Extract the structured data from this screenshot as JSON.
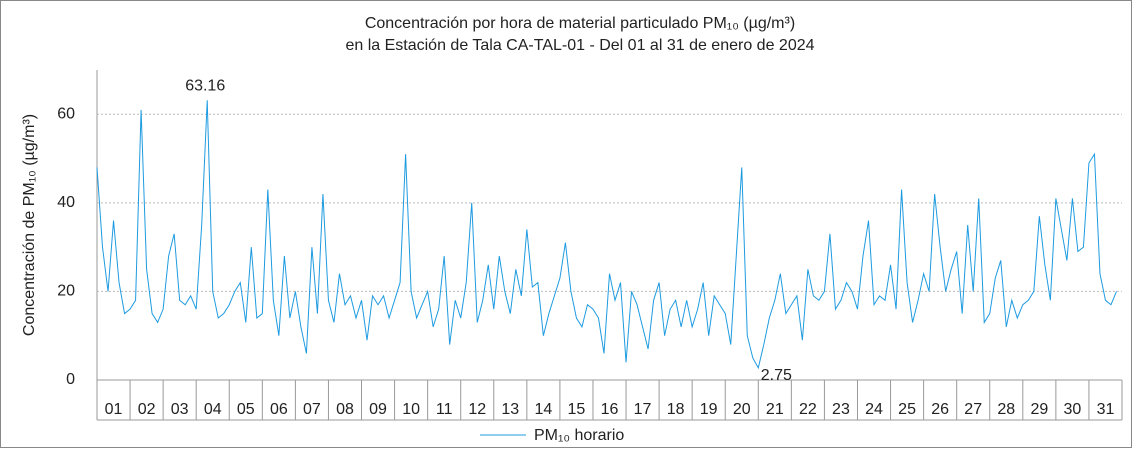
{
  "chart_data": {
    "type": "line",
    "title": [
      "Concentración por hora de material particulado PM₁₀ (µg/m³)",
      "en la Estación de Tala CA-TAL-01  - Del 01 al 31 de enero de 2024"
    ],
    "y_label": "Concentración de PM₁₀ (µg/m³)",
    "xlim": [
      0,
      744
    ],
    "xticks": [
      {
        "value": 12,
        "label": "01"
      },
      {
        "value": 36,
        "label": "02"
      },
      {
        "value": 60,
        "label": "03"
      },
      {
        "value": 84,
        "label": "04"
      },
      {
        "value": 108,
        "label": "05"
      },
      {
        "value": 132,
        "label": "06"
      },
      {
        "value": 156,
        "label": "07"
      },
      {
        "value": 180,
        "label": "08"
      },
      {
        "value": 204,
        "label": "09"
      },
      {
        "value": 228,
        "label": "10"
      },
      {
        "value": 252,
        "label": "11"
      },
      {
        "value": 276,
        "label": "12"
      },
      {
        "value": 300,
        "label": "13"
      },
      {
        "value": 324,
        "label": "14"
      },
      {
        "value": 348,
        "label": "15"
      },
      {
        "value": 372,
        "label": "16"
      },
      {
        "value": 396,
        "label": "17"
      },
      {
        "value": 420,
        "label": "18"
      },
      {
        "value": 444,
        "label": "19"
      },
      {
        "value": 468,
        "label": "20"
      },
      {
        "value": 492,
        "label": "21"
      },
      {
        "value": 516,
        "label": "22"
      },
      {
        "value": 540,
        "label": "23"
      },
      {
        "value": 564,
        "label": "24"
      },
      {
        "value": 588,
        "label": "25"
      },
      {
        "value": 612,
        "label": "26"
      },
      {
        "value": 636,
        "label": "27"
      },
      {
        "value": 660,
        "label": "28"
      },
      {
        "value": 684,
        "label": "29"
      },
      {
        "value": 708,
        "label": "30"
      },
      {
        "value": 732,
        "label": "31"
      }
    ],
    "ylim": [
      0,
      70
    ],
    "yticks": [
      0,
      20,
      40,
      60
    ],
    "grid": true,
    "legend": "bottom",
    "x": [
      0,
      4,
      8,
      12,
      16,
      20,
      24,
      28,
      32,
      36,
      40,
      44,
      48,
      52,
      56,
      60,
      64,
      68,
      72,
      76,
      80,
      84,
      88,
      92,
      96,
      100,
      104,
      108,
      112,
      116,
      120,
      124,
      128,
      132,
      136,
      140,
      144,
      148,
      152,
      156,
      160,
      164,
      168,
      172,
      176,
      180,
      184,
      188,
      192,
      196,
      200,
      204,
      208,
      212,
      216,
      220,
      224,
      228,
      232,
      236,
      240,
      244,
      248,
      252,
      256,
      260,
      264,
      268,
      272,
      276,
      280,
      284,
      288,
      292,
      296,
      300,
      304,
      308,
      312,
      316,
      320,
      324,
      328,
      332,
      336,
      340,
      344,
      348,
      352,
      356,
      360,
      364,
      368,
      372,
      376,
      380,
      384,
      388,
      392,
      396,
      400,
      404,
      408,
      412,
      416,
      420,
      424,
      428,
      432,
      436,
      440,
      444,
      448,
      452,
      456,
      460,
      464,
      468,
      472,
      476,
      480,
      484,
      488,
      492,
      496,
      500,
      504,
      508,
      512,
      516,
      520,
      524,
      528,
      532,
      536,
      540,
      544,
      548,
      552,
      556,
      560,
      564,
      568,
      572,
      576,
      580,
      584,
      588,
      592,
      596,
      600,
      604,
      608,
      612,
      616,
      620,
      624,
      628,
      632,
      636,
      640,
      644,
      648,
      652,
      656,
      660,
      664,
      668,
      672,
      676,
      680,
      684,
      688,
      692,
      696,
      700,
      704,
      708,
      712,
      716,
      720,
      724,
      728,
      732,
      736,
      740
    ],
    "series": [
      {
        "name": "PM₁₀ horario",
        "color": "#1e9be0",
        "values": [
          48,
          30,
          20,
          36,
          22,
          15,
          16,
          18,
          61,
          25,
          15,
          13,
          16,
          28,
          33,
          18,
          17,
          19,
          16,
          35,
          63.16,
          20,
          14,
          15,
          17,
          20,
          22,
          13,
          30,
          14,
          15,
          43,
          18,
          10,
          28,
          14,
          20,
          12,
          6,
          30,
          15,
          42,
          18,
          13,
          24,
          17,
          19,
          14,
          18,
          9,
          19,
          17,
          19,
          14,
          18,
          22,
          51,
          20,
          14,
          17,
          20,
          12,
          16,
          28,
          8,
          18,
          14,
          22,
          40,
          13,
          18,
          26,
          16,
          28,
          20,
          15,
          25,
          19,
          34,
          21,
          22,
          10,
          15,
          19,
          23,
          31,
          20,
          14,
          12,
          17,
          16,
          14,
          6,
          24,
          18,
          22,
          4,
          20,
          17,
          12,
          7,
          18,
          22,
          10,
          16,
          18,
          12,
          18,
          12,
          16,
          22,
          10,
          19,
          17,
          15,
          8,
          28,
          48,
          10,
          5,
          2.75,
          8,
          14,
          18,
          24,
          15,
          17,
          19,
          9,
          25,
          19,
          18,
          20,
          33,
          16,
          18,
          22,
          20,
          16,
          28,
          36,
          17,
          19,
          18,
          26,
          16,
          43,
          22,
          13,
          18,
          24,
          20,
          42,
          30,
          20,
          25,
          29,
          15,
          35,
          20,
          41,
          13,
          15,
          23,
          27,
          12,
          18,
          14,
          17,
          18,
          20,
          37,
          26,
          18,
          41,
          34,
          27,
          41,
          29,
          30,
          49,
          51,
          24,
          18,
          17,
          20
        ]
      }
    ],
    "annotations": [
      {
        "x": 80,
        "y": 63.16
      },
      {
        "x": 480,
        "y": 2.75
      }
    ]
  }
}
